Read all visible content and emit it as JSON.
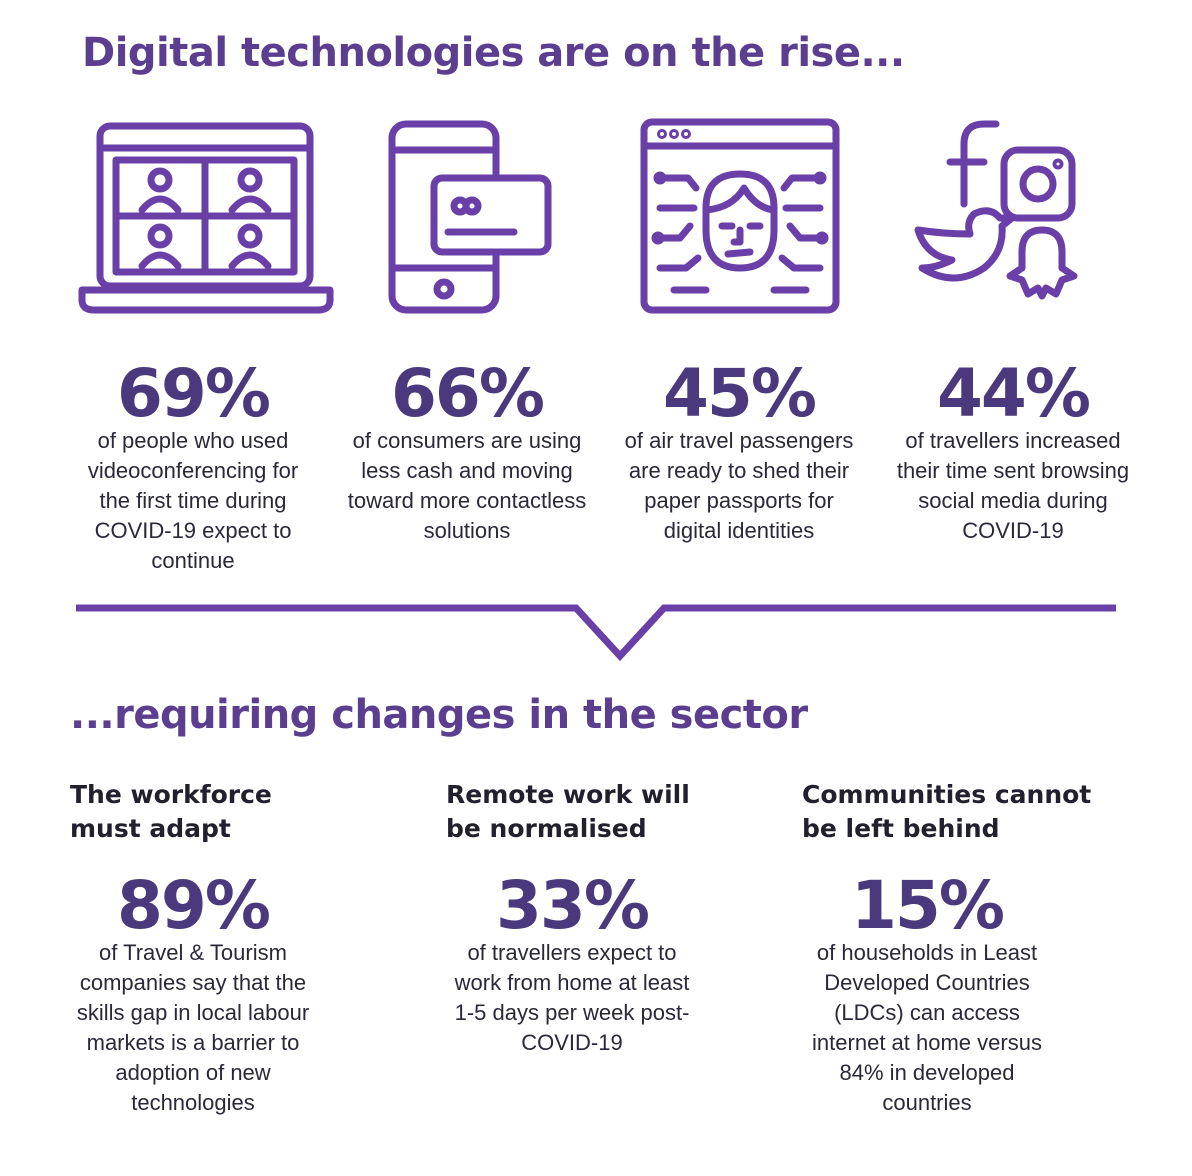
{
  "top": {
    "heading": "Digital technologies are on the rise...",
    "stats": [
      {
        "icon": "laptop-videoconference-icon",
        "pct": "69%",
        "desc": "of people who used videoconferencing for the first time during COVID-19 expect to continue"
      },
      {
        "icon": "phone-card-payment-icon",
        "pct": "66%",
        "desc": "of consumers are using less cash and moving toward more contactless solutions"
      },
      {
        "icon": "face-scan-icon",
        "pct": "45%",
        "desc": "of air travel passengers are ready to shed their paper passports for digital identities"
      },
      {
        "icon": "social-media-icon",
        "pct": "44%",
        "desc": "of travellers increased their time sent browsing social media during COVID-19"
      }
    ]
  },
  "bottom": {
    "heading": "...requiring changes in the sector",
    "columns": [
      {
        "title": "The workforce must adapt",
        "pct": "89%",
        "desc": "of Travel & Tourism companies say that the skills gap in local labour markets is a barrier to adoption of new technologies"
      },
      {
        "title": "Remote work will be normalised",
        "pct": "33%",
        "desc": "of travellers expect to work from home at least 1-5 days per week post-COVID-19"
      },
      {
        "title": "Communities cannot be left behind",
        "pct": "15%",
        "desc": "of households in Least Developed Countries (LDCs) can access internet at home versus 84% in developed countries"
      }
    ]
  },
  "colors": {
    "accent": "#6a3fa8",
    "stat": "#4a3a7d"
  }
}
